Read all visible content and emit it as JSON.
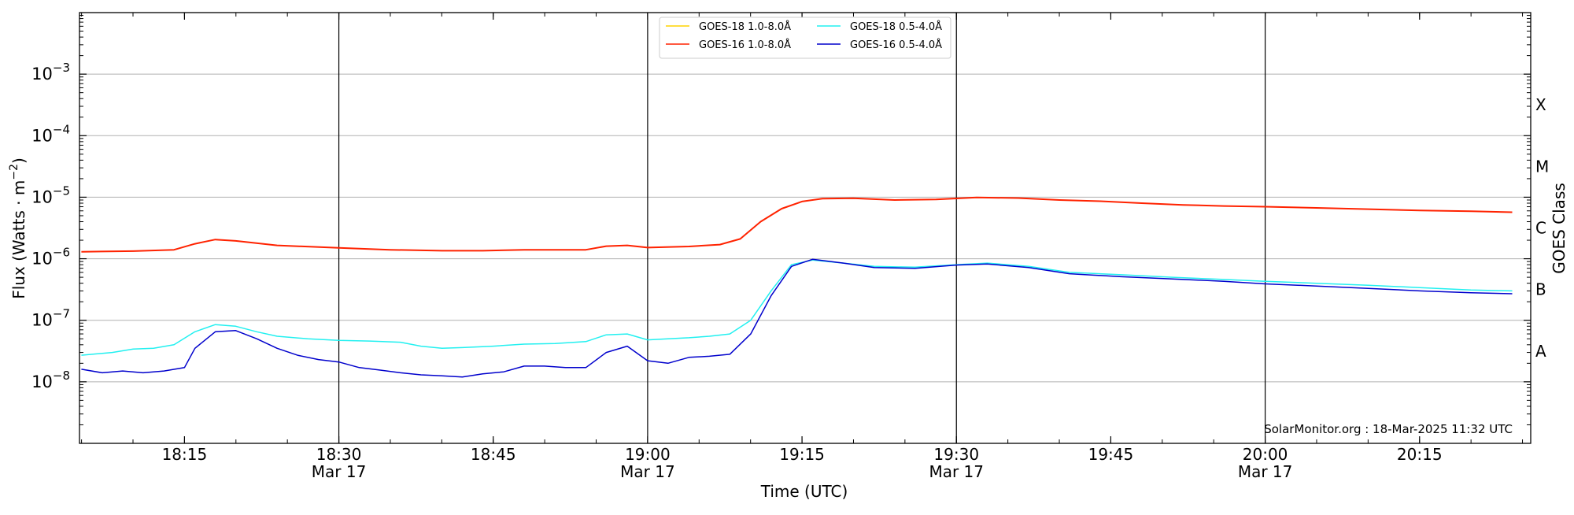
{
  "chart_data": {
    "type": "line",
    "xlabel": "Time (UTC)",
    "ylabel": "Flux (Watts · m",
    "ylabel_sup": "−2",
    "ylabel_close": ")",
    "right_label": "GOES Class",
    "watermark": "SolarMonitor.org : 18-Mar-2025 11:32 UTC",
    "y_scale": "log",
    "ylim": [
      1e-09,
      0.01
    ],
    "xlim_minutes": [
      18.08,
      20.43
    ],
    "y_ticks": [
      {
        "value": -8,
        "base": "10",
        "exp": "−8"
      },
      {
        "value": -7,
        "base": "10",
        "exp": "−7"
      },
      {
        "value": -6,
        "base": "10",
        "exp": "−6"
      },
      {
        "value": -5,
        "base": "10",
        "exp": "−5"
      },
      {
        "value": -4,
        "base": "10",
        "exp": "−4"
      },
      {
        "value": -3,
        "base": "10",
        "exp": "−3"
      }
    ],
    "x_ticks": [
      {
        "t": 18.25,
        "label": "18:15",
        "date": ""
      },
      {
        "t": 18.5,
        "label": "18:30",
        "date": "Mar 17"
      },
      {
        "t": 18.75,
        "label": "18:45",
        "date": ""
      },
      {
        "t": 19.0,
        "label": "19:00",
        "date": "Mar 17"
      },
      {
        "t": 19.25,
        "label": "19:15",
        "date": ""
      },
      {
        "t": 19.5,
        "label": "19:30",
        "date": "Mar 17"
      },
      {
        "t": 19.75,
        "label": "19:45",
        "date": ""
      },
      {
        "t": 20.0,
        "label": "20:00",
        "date": "Mar 17"
      },
      {
        "t": 20.25,
        "label": "20:15",
        "date": ""
      }
    ],
    "vlines": [
      18.5,
      19.0,
      19.5,
      20.0
    ],
    "goes_classes": [
      {
        "label": "A",
        "value": -7.5
      },
      {
        "label": "B",
        "value": -6.5
      },
      {
        "label": "C",
        "value": -5.5
      },
      {
        "label": "M",
        "value": -4.5
      },
      {
        "label": "X",
        "value": -3.5
      }
    ],
    "grid": true,
    "legend_position": "top-center",
    "series": [
      {
        "name": "GOES-18 1.0-8.0Å",
        "color": "#ffd400",
        "points": []
      },
      {
        "name": "GOES-16 1.0-8.0Å",
        "color": "#ff2200",
        "points": [
          [
            18.083,
            1.3e-06
          ],
          [
            18.167,
            1.33e-06
          ],
          [
            18.233,
            1.4e-06
          ],
          [
            18.267,
            1.75e-06
          ],
          [
            18.3,
            2.05e-06
          ],
          [
            18.333,
            1.95e-06
          ],
          [
            18.4,
            1.65e-06
          ],
          [
            18.5,
            1.5e-06
          ],
          [
            18.583,
            1.4e-06
          ],
          [
            18.667,
            1.35e-06
          ],
          [
            18.733,
            1.35e-06
          ],
          [
            18.8,
            1.4e-06
          ],
          [
            18.867,
            1.4e-06
          ],
          [
            18.9,
            1.4e-06
          ],
          [
            18.933,
            1.6e-06
          ],
          [
            18.967,
            1.65e-06
          ],
          [
            19.0,
            1.52e-06
          ],
          [
            19.067,
            1.58e-06
          ],
          [
            19.117,
            1.7e-06
          ],
          [
            19.15,
            2.1e-06
          ],
          [
            19.183,
            4e-06
          ],
          [
            19.217,
            6.5e-06
          ],
          [
            19.25,
            8.5e-06
          ],
          [
            19.283,
            9.5e-06
          ],
          [
            19.333,
            9.6e-06
          ],
          [
            19.4,
            9e-06
          ],
          [
            19.467,
            9.2e-06
          ],
          [
            19.533,
            9.9e-06
          ],
          [
            19.6,
            9.7e-06
          ],
          [
            19.667,
            9e-06
          ],
          [
            19.733,
            8.6e-06
          ],
          [
            19.8,
            8e-06
          ],
          [
            19.867,
            7.5e-06
          ],
          [
            19.933,
            7.2e-06
          ],
          [
            20.0,
            7e-06
          ],
          [
            20.083,
            6.7e-06
          ],
          [
            20.167,
            6.4e-06
          ],
          [
            20.25,
            6.1e-06
          ],
          [
            20.333,
            5.9e-06
          ],
          [
            20.4,
            5.7e-06
          ]
        ]
      },
      {
        "name": "GOES-18 0.5-4.0Å",
        "color": "#22f0f0",
        "points": [
          [
            18.083,
            2.7e-08
          ],
          [
            18.133,
            3e-08
          ],
          [
            18.167,
            3.4e-08
          ],
          [
            18.2,
            3.5e-08
          ],
          [
            18.233,
            4e-08
          ],
          [
            18.267,
            6.5e-08
          ],
          [
            18.3,
            8.5e-08
          ],
          [
            18.333,
            8e-08
          ],
          [
            18.367,
            6.5e-08
          ],
          [
            18.4,
            5.5e-08
          ],
          [
            18.45,
            5e-08
          ],
          [
            18.5,
            4.7e-08
          ],
          [
            18.55,
            4.6e-08
          ],
          [
            18.6,
            4.4e-08
          ],
          [
            18.633,
            3.8e-08
          ],
          [
            18.667,
            3.5e-08
          ],
          [
            18.7,
            3.6e-08
          ],
          [
            18.75,
            3.8e-08
          ],
          [
            18.8,
            4.1e-08
          ],
          [
            18.85,
            4.2e-08
          ],
          [
            18.9,
            4.5e-08
          ],
          [
            18.933,
            5.8e-08
          ],
          [
            18.967,
            6e-08
          ],
          [
            19.0,
            4.8e-08
          ],
          [
            19.033,
            5e-08
          ],
          [
            19.067,
            5.2e-08
          ],
          [
            19.1,
            5.5e-08
          ],
          [
            19.133,
            6e-08
          ],
          [
            19.167,
            1e-07
          ],
          [
            19.2,
            3e-07
          ],
          [
            19.233,
            8e-07
          ],
          [
            19.267,
            9.5e-07
          ],
          [
            19.317,
            8.5e-07
          ],
          [
            19.367,
            7.5e-07
          ],
          [
            19.433,
            7.3e-07
          ],
          [
            19.5,
            8e-07
          ],
          [
            19.55,
            8.5e-07
          ],
          [
            19.617,
            7.5e-07
          ],
          [
            19.683,
            6e-07
          ],
          [
            19.767,
            5.5e-07
          ],
          [
            19.85,
            5e-07
          ],
          [
            19.933,
            4.6e-07
          ],
          [
            20.0,
            4.3e-07
          ],
          [
            20.083,
            4e-07
          ],
          [
            20.167,
            3.7e-07
          ],
          [
            20.25,
            3.4e-07
          ],
          [
            20.333,
            3.1e-07
          ],
          [
            20.4,
            3e-07
          ]
        ]
      },
      {
        "name": "GOES-16 0.5-4.0Å",
        "color": "#0000cc",
        "points": [
          [
            18.083,
            1.6e-08
          ],
          [
            18.117,
            1.4e-08
          ],
          [
            18.15,
            1.5e-08
          ],
          [
            18.183,
            1.4e-08
          ],
          [
            18.217,
            1.5e-08
          ],
          [
            18.25,
            1.7e-08
          ],
          [
            18.267,
            3.5e-08
          ],
          [
            18.3,
            6.5e-08
          ],
          [
            18.333,
            6.8e-08
          ],
          [
            18.367,
            5e-08
          ],
          [
            18.4,
            3.5e-08
          ],
          [
            18.433,
            2.7e-08
          ],
          [
            18.467,
            2.3e-08
          ],
          [
            18.5,
            2.1e-08
          ],
          [
            18.533,
            1.7e-08
          ],
          [
            18.567,
            1.55e-08
          ],
          [
            18.6,
            1.4e-08
          ],
          [
            18.633,
            1.3e-08
          ],
          [
            18.667,
            1.25e-08
          ],
          [
            18.7,
            1.2e-08
          ],
          [
            18.733,
            1.35e-08
          ],
          [
            18.767,
            1.45e-08
          ],
          [
            18.8,
            1.8e-08
          ],
          [
            18.833,
            1.8e-08
          ],
          [
            18.867,
            1.7e-08
          ],
          [
            18.9,
            1.7e-08
          ],
          [
            18.933,
            3e-08
          ],
          [
            18.967,
            3.8e-08
          ],
          [
            19.0,
            2.2e-08
          ],
          [
            19.033,
            2e-08
          ],
          [
            19.067,
            2.5e-08
          ],
          [
            19.1,
            2.6e-08
          ],
          [
            19.133,
            2.8e-08
          ],
          [
            19.167,
            6e-08
          ],
          [
            19.2,
            2.5e-07
          ],
          [
            19.233,
            7.5e-07
          ],
          [
            19.267,
            9.8e-07
          ],
          [
            19.317,
            8.5e-07
          ],
          [
            19.367,
            7.2e-07
          ],
          [
            19.433,
            7e-07
          ],
          [
            19.5,
            7.9e-07
          ],
          [
            19.55,
            8.2e-07
          ],
          [
            19.617,
            7.2e-07
          ],
          [
            19.683,
            5.7e-07
          ],
          [
            19.767,
            5.1e-07
          ],
          [
            19.85,
            4.7e-07
          ],
          [
            19.933,
            4.3e-07
          ],
          [
            20.0,
            3.9e-07
          ],
          [
            20.083,
            3.6e-07
          ],
          [
            20.167,
            3.3e-07
          ],
          [
            20.25,
            3e-07
          ],
          [
            20.333,
            2.8e-07
          ],
          [
            20.4,
            2.7e-07
          ]
        ]
      }
    ]
  }
}
